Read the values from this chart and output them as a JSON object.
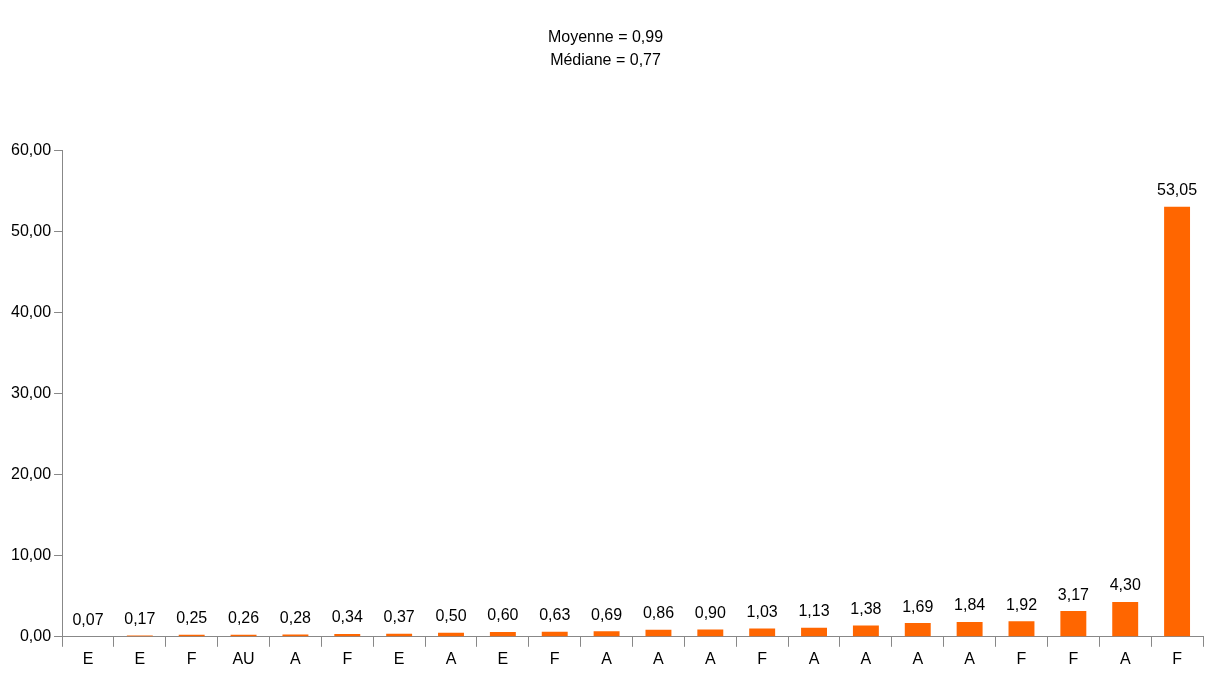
{
  "chart_data": {
    "type": "bar",
    "title": "Moyenne = 0,99",
    "subtitle": "Médiane = 0,77",
    "categories": [
      "E",
      "E",
      "F",
      "AU",
      "A",
      "F",
      "E",
      "A",
      "E",
      "F",
      "A",
      "A",
      "A",
      "F",
      "A",
      "A",
      "A",
      "A",
      "F",
      "F",
      "A",
      "F"
    ],
    "values": [
      0.07,
      0.17,
      0.25,
      0.26,
      0.28,
      0.34,
      0.37,
      0.5,
      0.6,
      0.63,
      0.69,
      0.86,
      0.9,
      1.03,
      1.13,
      1.38,
      1.69,
      1.84,
      1.92,
      3.17,
      4.3,
      53.05
    ],
    "value_labels": [
      "0,07",
      "0,17",
      "0,25",
      "0,26",
      "0,28",
      "0,34",
      "0,37",
      "0,50",
      "0,60",
      "0,63",
      "0,69",
      "0,86",
      "0,90",
      "1,03",
      "1,13",
      "1,38",
      "1,69",
      "1,84",
      "1,92",
      "3,17",
      "4,30",
      "53,05"
    ],
    "color": "#ff6600",
    "ylim": [
      0,
      60
    ],
    "yticks": [
      {
        "value": 0,
        "label": "0,00"
      },
      {
        "value": 10,
        "label": "10,00"
      },
      {
        "value": 20,
        "label": "20,00"
      },
      {
        "value": 30,
        "label": "30,00"
      },
      {
        "value": 40,
        "label": "40,00"
      },
      {
        "value": 50,
        "label": "50,00"
      },
      {
        "value": 60,
        "label": "60,00"
      }
    ],
    "grid": false,
    "legend": false
  }
}
